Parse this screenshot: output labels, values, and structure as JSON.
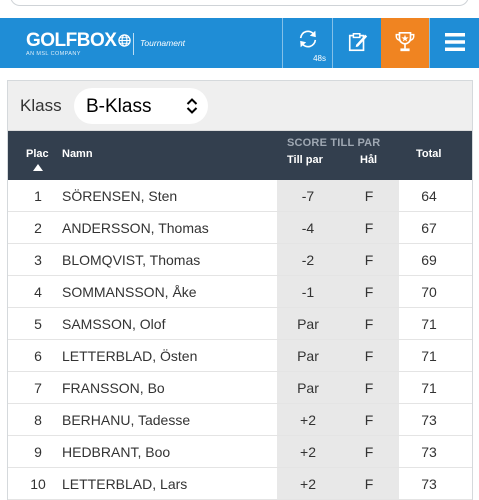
{
  "header": {
    "logo_text": "GOLFBOX",
    "logo_sub": "AN MSL COMPANY",
    "logo_context": "Tournament",
    "refresh_countdown": "48s",
    "icons": [
      "refresh-icon",
      "edit-icon",
      "trophy-icon",
      "menu-icon"
    ],
    "colors": {
      "bar": "#1f8dd6",
      "active": "#f08421"
    }
  },
  "class_filter": {
    "label": "Klass",
    "selected": "B-Klass"
  },
  "table": {
    "headers": {
      "plac": "Plac",
      "namn": "Namn",
      "score_group": "SCORE TILL PAR",
      "till_par": "Till par",
      "hal": "Hål",
      "total": "Total"
    },
    "rows": [
      {
        "plac": "1",
        "name": "SÖRENSEN, Sten",
        "to_par": "-7",
        "hole": "F",
        "total": "64"
      },
      {
        "plac": "2",
        "name": "ANDERSSON, Thomas",
        "to_par": "-4",
        "hole": "F",
        "total": "67"
      },
      {
        "plac": "3",
        "name": "BLOMQVIST, Thomas",
        "to_par": "-2",
        "hole": "F",
        "total": "69"
      },
      {
        "plac": "4",
        "name": "SOMMANSSON, Åke",
        "to_par": "-1",
        "hole": "F",
        "total": "70"
      },
      {
        "plac": "5",
        "name": "SAMSSON, Olof",
        "to_par": "Par",
        "hole": "F",
        "total": "71"
      },
      {
        "plac": "6",
        "name": "LETTERBLAD, Östen",
        "to_par": "Par",
        "hole": "F",
        "total": "71"
      },
      {
        "plac": "7",
        "name": "FRANSSON, Bo",
        "to_par": "Par",
        "hole": "F",
        "total": "71"
      },
      {
        "plac": "8",
        "name": "BERHANU, Tadesse",
        "to_par": "+2",
        "hole": "F",
        "total": "73"
      },
      {
        "plac": "9",
        "name": "HEDBRANT, Boo",
        "to_par": "+2",
        "hole": "F",
        "total": "73"
      },
      {
        "plac": "10",
        "name": "LETTERBLAD, Lars",
        "to_par": "+2",
        "hole": "F",
        "total": "73"
      }
    ]
  }
}
